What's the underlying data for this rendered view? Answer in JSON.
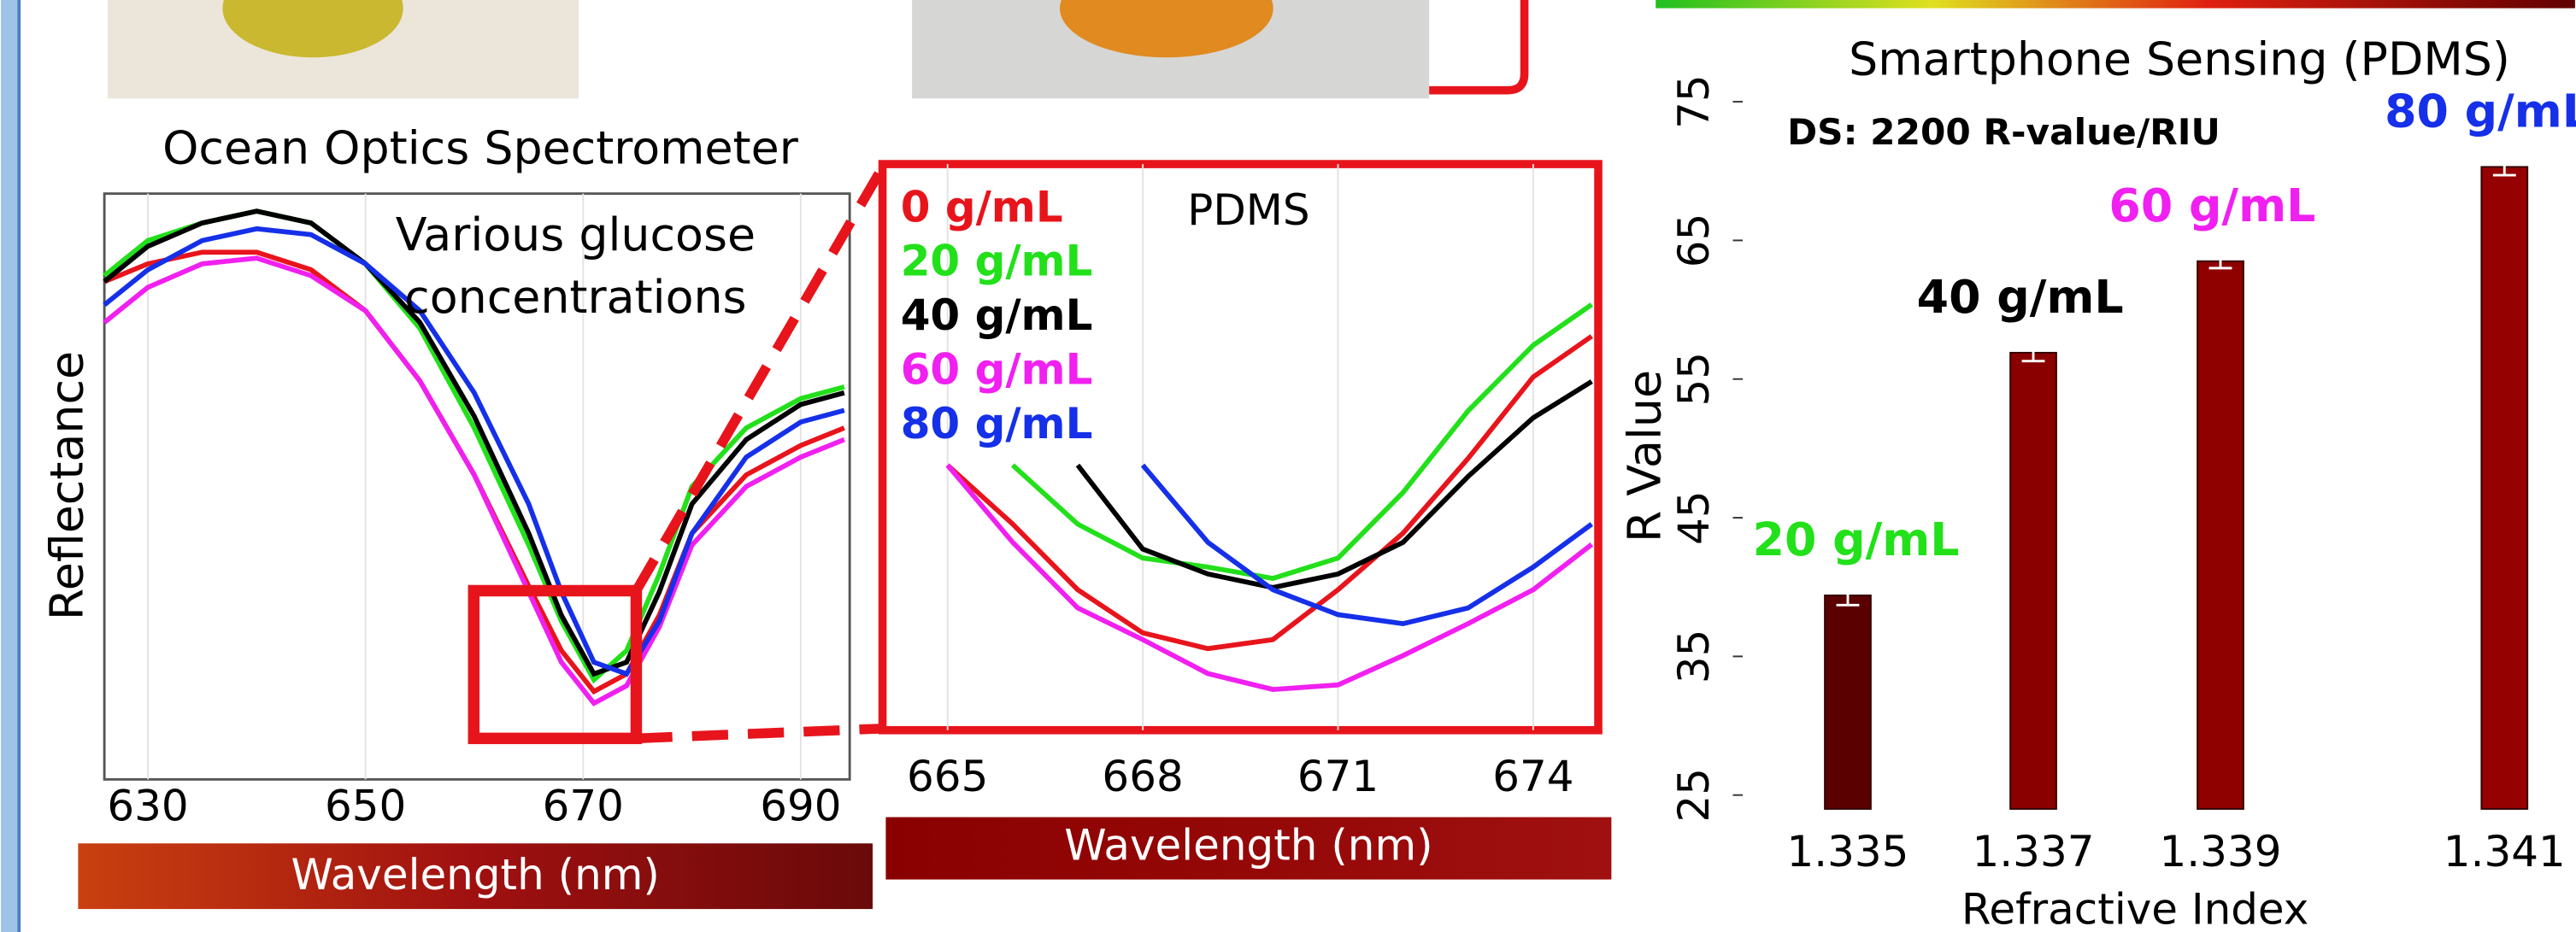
{
  "chart_data": [
    {
      "type": "line",
      "title": "Ocean Optics Spectrometer",
      "x_label": "Wavelength (nm)",
      "y_label": "Reflectance",
      "annotation": [
        "Various glucose",
        "concentrations"
      ],
      "x": [
        626,
        630,
        635,
        640,
        645,
        650,
        655,
        660,
        665,
        668,
        671,
        674,
        677,
        680,
        685,
        690,
        694
      ],
      "xlim": [
        626,
        694.5
      ],
      "xticks": [
        630,
        650,
        670,
        690
      ],
      "ylim": [
        0,
        1
      ],
      "grid": true,
      "series": [
        {
          "color": "#e8141c",
          "values": [
            0.85,
            0.88,
            0.9,
            0.9,
            0.87,
            0.8,
            0.68,
            0.52,
            0.33,
            0.22,
            0.15,
            0.18,
            0.28,
            0.42,
            0.52,
            0.57,
            0.6
          ]
        },
        {
          "color": "#22e01a",
          "values": [
            0.86,
            0.92,
            0.95,
            0.97,
            0.95,
            0.88,
            0.77,
            0.6,
            0.4,
            0.27,
            0.17,
            0.22,
            0.35,
            0.5,
            0.6,
            0.65,
            0.67
          ]
        },
        {
          "color": "#000000",
          "values": [
            0.85,
            0.91,
            0.95,
            0.97,
            0.95,
            0.88,
            0.78,
            0.62,
            0.42,
            0.28,
            0.18,
            0.2,
            0.32,
            0.47,
            0.58,
            0.64,
            0.66
          ]
        },
        {
          "color": "#f020f0",
          "values": [
            0.78,
            0.84,
            0.88,
            0.89,
            0.86,
            0.8,
            0.68,
            0.52,
            0.32,
            0.2,
            0.13,
            0.16,
            0.26,
            0.4,
            0.5,
            0.55,
            0.58
          ]
        },
        {
          "color": "#1530e8",
          "values": [
            0.81,
            0.87,
            0.92,
            0.94,
            0.93,
            0.88,
            0.8,
            0.66,
            0.47,
            0.32,
            0.2,
            0.18,
            0.27,
            0.42,
            0.55,
            0.61,
            0.63
          ]
        }
      ]
    },
    {
      "type": "line",
      "x_label": "Wavelength (nm)",
      "annotation": [
        "PDMS"
      ],
      "x": [
        665,
        666,
        667,
        668,
        669,
        670,
        671,
        672,
        673,
        674,
        674.9
      ],
      "xlim": [
        664,
        675
      ],
      "xticks": [
        665,
        668,
        671,
        674
      ],
      "ylim": [
        0.07,
        0.32
      ],
      "grid": true,
      "series": [
        {
          "name": "0 g/mL",
          "color": "#e8141c",
          "values": [
            0.187,
            0.161,
            0.132,
            0.113,
            0.106,
            0.11,
            0.132,
            0.157,
            0.19,
            0.226,
            0.244
          ]
        },
        {
          "name": "20 g/mL",
          "color": "#22e01a",
          "values": [
            null,
            0.187,
            0.161,
            0.146,
            0.142,
            0.137,
            0.146,
            0.175,
            0.211,
            0.24,
            0.258
          ]
        },
        {
          "name": "40 g/mL",
          "color": "#000000",
          "values": [
            null,
            null,
            0.187,
            0.15,
            0.139,
            0.133,
            0.139,
            0.153,
            0.182,
            0.208,
            0.224
          ]
        },
        {
          "name": "60 g/mL",
          "color": "#f020f0",
          "values": [
            0.187,
            0.153,
            0.124,
            0.11,
            0.095,
            0.088,
            0.09,
            0.103,
            0.117,
            0.132,
            0.152
          ]
        },
        {
          "name": "80 g/mL",
          "color": "#1530e8",
          "values": [
            null,
            null,
            null,
            0.187,
            0.153,
            0.132,
            0.121,
            0.117,
            0.124,
            0.142,
            0.161
          ]
        }
      ]
    },
    {
      "type": "bar",
      "title": "Smartphone Sensing (PDMS)",
      "x_label": "Refractive Index",
      "y_label": "R Value",
      "annotation": [
        "DS: 2200 R-value/RIU"
      ],
      "categories": [
        "1.335",
        "1.337",
        "1.339",
        "1.341"
      ],
      "values": [
        39.4,
        56.9,
        63.5,
        70.3
      ],
      "errors": [
        0.7,
        0.6,
        0.5,
        0.6
      ],
      "colors": [
        "#5a0000",
        "#8a0000",
        "#8f0000",
        "#950000"
      ],
      "labels": [
        "20 g/mL",
        "40 g/mL",
        "60 g/mL",
        "80 g/mL"
      ],
      "label_colors": [
        "#22e01a",
        "#000000",
        "#f020f0",
        "#1530e8"
      ],
      "ylim": [
        24,
        75
      ],
      "yticks": [
        25,
        35,
        45,
        55,
        65,
        75
      ]
    }
  ]
}
